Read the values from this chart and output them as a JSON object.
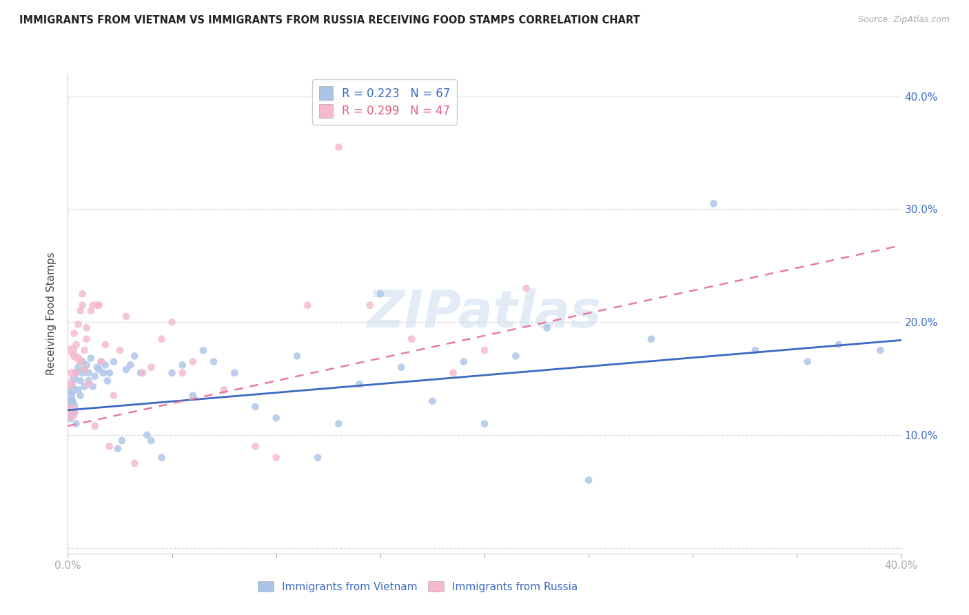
{
  "title": "IMMIGRANTS FROM VIETNAM VS IMMIGRANTS FROM RUSSIA RECEIVING FOOD STAMPS CORRELATION CHART",
  "source": "Source: ZipAtlas.com",
  "ylabel": "Receiving Food Stamps",
  "background_color": "#ffffff",
  "grid_color": "#d8d8d8",
  "vietnam_color": "#aac4e8",
  "russia_color": "#f5b8cc",
  "vietnam_line_color": "#3a6abf",
  "russia_line_color": "#e87aa0",
  "watermark": "ZIPatlas",
  "xlim": [
    0.0,
    0.4
  ],
  "ylim": [
    -0.005,
    0.42
  ],
  "yticks": [
    0.0,
    0.1,
    0.2,
    0.3,
    0.4
  ],
  "xticks": [
    0.0,
    0.05,
    0.1,
    0.15,
    0.2,
    0.25,
    0.3,
    0.35,
    0.4
  ],
  "vietnam_intercept": 0.122,
  "vietnam_slope": 0.155,
  "russia_intercept": 0.108,
  "russia_slope": 0.4,
  "vietnam_x": [
    0.001,
    0.001,
    0.001,
    0.002,
    0.002,
    0.002,
    0.003,
    0.003,
    0.004,
    0.004,
    0.005,
    0.005,
    0.006,
    0.006,
    0.007,
    0.007,
    0.008,
    0.008,
    0.009,
    0.01,
    0.01,
    0.011,
    0.012,
    0.013,
    0.014,
    0.015,
    0.016,
    0.017,
    0.018,
    0.019,
    0.02,
    0.022,
    0.024,
    0.026,
    0.028,
    0.03,
    0.032,
    0.035,
    0.038,
    0.04,
    0.045,
    0.05,
    0.055,
    0.06,
    0.065,
    0.07,
    0.08,
    0.09,
    0.1,
    0.11,
    0.12,
    0.13,
    0.14,
    0.15,
    0.16,
    0.175,
    0.19,
    0.2,
    0.215,
    0.23,
    0.25,
    0.28,
    0.31,
    0.33,
    0.355,
    0.37,
    0.39
  ],
  "vietnam_y": [
    0.125,
    0.135,
    0.115,
    0.14,
    0.13,
    0.145,
    0.15,
    0.12,
    0.155,
    0.11,
    0.16,
    0.14,
    0.148,
    0.135,
    0.155,
    0.165,
    0.143,
    0.158,
    0.162,
    0.148,
    0.155,
    0.168,
    0.143,
    0.152,
    0.16,
    0.158,
    0.165,
    0.155,
    0.162,
    0.148,
    0.155,
    0.165,
    0.088,
    0.095,
    0.158,
    0.162,
    0.17,
    0.155,
    0.1,
    0.095,
    0.08,
    0.155,
    0.162,
    0.135,
    0.175,
    0.165,
    0.155,
    0.125,
    0.115,
    0.17,
    0.08,
    0.11,
    0.145,
    0.225,
    0.16,
    0.13,
    0.165,
    0.11,
    0.17,
    0.195,
    0.06,
    0.185,
    0.305,
    0.175,
    0.165,
    0.18,
    0.175
  ],
  "vietnam_sizes": [
    300,
    120,
    80,
    120,
    80,
    60,
    80,
    60,
    60,
    60,
    60,
    60,
    60,
    60,
    60,
    60,
    60,
    60,
    60,
    60,
    60,
    60,
    60,
    60,
    60,
    60,
    60,
    60,
    60,
    60,
    60,
    60,
    60,
    60,
    60,
    60,
    60,
    60,
    60,
    60,
    60,
    60,
    60,
    60,
    60,
    60,
    60,
    60,
    60,
    60,
    60,
    60,
    60,
    60,
    60,
    60,
    60,
    60,
    60,
    60,
    60,
    60,
    60,
    60,
    60,
    60,
    60
  ],
  "russia_x": [
    0.001,
    0.001,
    0.002,
    0.002,
    0.003,
    0.003,
    0.004,
    0.004,
    0.005,
    0.005,
    0.006,
    0.006,
    0.007,
    0.007,
    0.008,
    0.008,
    0.009,
    0.009,
    0.01,
    0.011,
    0.012,
    0.013,
    0.014,
    0.015,
    0.016,
    0.018,
    0.02,
    0.022,
    0.025,
    0.028,
    0.032,
    0.036,
    0.04,
    0.045,
    0.05,
    0.055,
    0.06,
    0.075,
    0.09,
    0.1,
    0.115,
    0.13,
    0.145,
    0.165,
    0.185,
    0.2,
    0.22
  ],
  "russia_y": [
    0.12,
    0.145,
    0.175,
    0.155,
    0.17,
    0.19,
    0.155,
    0.18,
    0.168,
    0.198,
    0.21,
    0.165,
    0.215,
    0.225,
    0.158,
    0.175,
    0.185,
    0.195,
    0.145,
    0.21,
    0.215,
    0.108,
    0.215,
    0.215,
    0.165,
    0.18,
    0.09,
    0.135,
    0.175,
    0.205,
    0.075,
    0.155,
    0.16,
    0.185,
    0.2,
    0.155,
    0.165,
    0.14,
    0.09,
    0.08,
    0.215,
    0.355,
    0.215,
    0.185,
    0.155,
    0.175,
    0.23
  ],
  "russia_sizes": [
    300,
    120,
    120,
    80,
    80,
    60,
    60,
    60,
    80,
    60,
    60,
    60,
    60,
    60,
    60,
    60,
    60,
    60,
    60,
    60,
    60,
    60,
    60,
    60,
    60,
    60,
    60,
    60,
    60,
    60,
    60,
    60,
    60,
    60,
    60,
    60,
    60,
    60,
    60,
    60,
    60,
    60,
    60,
    60,
    60,
    60,
    60
  ]
}
